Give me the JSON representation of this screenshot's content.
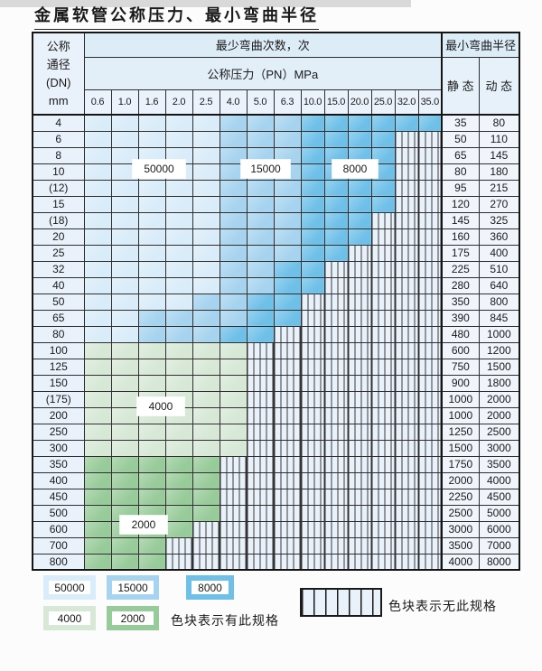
{
  "title": "金属软管公称压力、最小弯曲半径",
  "table": {
    "corner": {
      "l1": "公称",
      "l2": "通径",
      "l3": "(DN)",
      "l4": "mm"
    },
    "header_cycles": "最少弯曲次数，次",
    "header_pressure": "公称压力（PN）MPa",
    "header_radius": "最小弯曲半径",
    "static_label": "静 态",
    "dynamic_label": "动 态",
    "pressures": [
      "0.6",
      "1.0",
      "1.6",
      "2.0",
      "2.5",
      "4.0",
      "5.0",
      "6.3",
      "10.0",
      "15.0",
      "20.0",
      "25.0",
      "32.0",
      "35.0"
    ],
    "rows": [
      {
        "dn": "4",
        "pattern": "lllllmmmdddddd",
        "static": "35",
        "dynamic": "80"
      },
      {
        "dn": "6",
        "pattern": "lllllmmmddddhh",
        "static": "50",
        "dynamic": "110"
      },
      {
        "dn": "8",
        "pattern": "lllllmmmddddhh",
        "static": "65",
        "dynamic": "145"
      },
      {
        "dn": "10",
        "pattern": "lllllmmmddddhh",
        "static": "80",
        "dynamic": "180"
      },
      {
        "dn": "(12)",
        "pattern": "lllllmmmddddhh",
        "static": "95",
        "dynamic": "215"
      },
      {
        "dn": "15",
        "pattern": "lllllmmmddddhh",
        "static": "120",
        "dynamic": "270"
      },
      {
        "dn": "(18)",
        "pattern": "lllllmmmdddhhh",
        "static": "145",
        "dynamic": "325"
      },
      {
        "dn": "20",
        "pattern": "lllllmmmdddhhh",
        "static": "160",
        "dynamic": "360"
      },
      {
        "dn": "25",
        "pattern": "lllllmmmddhhhh",
        "static": "175",
        "dynamic": "400"
      },
      {
        "dn": "32",
        "pattern": "lllllmmddhhhhh",
        "static": "225",
        "dynamic": "510"
      },
      {
        "dn": "40",
        "pattern": "lllllmmddhhhhh",
        "static": "280",
        "dynamic": "640"
      },
      {
        "dn": "50",
        "pattern": "llllmmddhhhhhh",
        "static": "350",
        "dynamic": "800"
      },
      {
        "dn": "65",
        "pattern": "llmmmmddhhhhhh",
        "static": "390",
        "dynamic": "845"
      },
      {
        "dn": "80",
        "pattern": "llmmmddhhhhhhh",
        "static": "480",
        "dynamic": "1000"
      },
      {
        "dn": "100",
        "pattern": "gggggghhhhhhhh",
        "static": "600",
        "dynamic": "1200"
      },
      {
        "dn": "125",
        "pattern": "gggggghhhhhhhh",
        "static": "750",
        "dynamic": "1500"
      },
      {
        "dn": "150",
        "pattern": "gggggghhhhhhhh",
        "static": "900",
        "dynamic": "1800"
      },
      {
        "dn": "(175)",
        "pattern": "gggggghhhhhhhh",
        "static": "1000",
        "dynamic": "2000"
      },
      {
        "dn": "200",
        "pattern": "gggggghhhhhhhh",
        "static": "1000",
        "dynamic": "2000"
      },
      {
        "dn": "250",
        "pattern": "gggggghhhhhhhh",
        "static": "1250",
        "dynamic": "2500"
      },
      {
        "dn": "300",
        "pattern": "gggggghhhhhhhh",
        "static": "1500",
        "dynamic": "3000"
      },
      {
        "dn": "350",
        "pattern": "GGGGGhhhhhhhhh",
        "static": "1750",
        "dynamic": "3500"
      },
      {
        "dn": "400",
        "pattern": "GGGGGhhhhhhhhh",
        "static": "2000",
        "dynamic": "4000"
      },
      {
        "dn": "450",
        "pattern": "GGGGGhhhhhhhhh",
        "static": "2250",
        "dynamic": "4500"
      },
      {
        "dn": "500",
        "pattern": "GGGGGhhhhhhhhh",
        "static": "2500",
        "dynamic": "5000"
      },
      {
        "dn": "600",
        "pattern": "GGGGhhhhhhhhhh",
        "static": "3000",
        "dynamic": "6000"
      },
      {
        "dn": "700",
        "pattern": "GGGhhhhhhhhhhh",
        "static": "3500",
        "dynamic": "7000"
      },
      {
        "dn": "800",
        "pattern": "GGGhhhhhhhhhhh",
        "static": "4000",
        "dynamic": "8000"
      }
    ]
  },
  "overlays": {
    "b50000": "50000",
    "b15000": "15000",
    "b8000": "8000",
    "b4000": "4000",
    "b2000": "2000"
  },
  "legend": {
    "swatches": [
      {
        "label": "50000",
        "color": "#d9ecf9"
      },
      {
        "label": "15000",
        "color": "#a6d3ef"
      },
      {
        "label": "8000",
        "color": "#6fc0e9"
      },
      {
        "label": "4000",
        "color": "#d7e8d6"
      },
      {
        "label": "2000",
        "color": "#98cb9a"
      }
    ],
    "has_spec": "色块表示有此规格",
    "no_spec": "色块表示无此规格"
  },
  "colors": {
    "blue_50000": "#d9ecf9",
    "blue_15000": "#a6d3ef",
    "blue_8000": "#6fc0e9",
    "green_4000": "#d7e8d6",
    "green_2000": "#98cb9a",
    "hatch_bg": "#e9f2fa",
    "row_head_bg": "#e9f2fa",
    "value_bg": "#eff5fb"
  }
}
